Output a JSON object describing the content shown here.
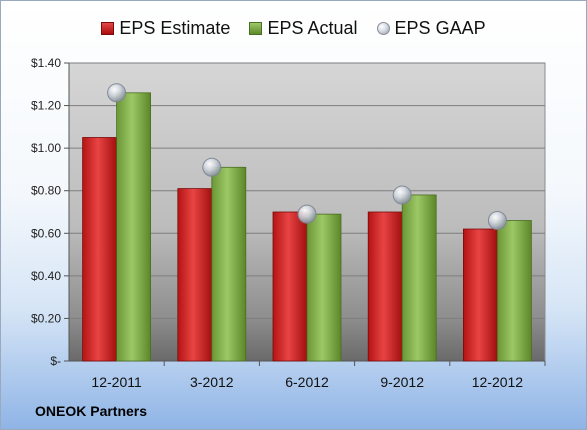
{
  "chart_data": {
    "type": "bar",
    "categories": [
      "12-2011",
      "3-2012",
      "6-2012",
      "9-2012",
      "12-2012"
    ],
    "series": [
      {
        "name": "EPS Estimate",
        "kind": "bar",
        "color": "#c41c1c",
        "values": [
          1.05,
          0.81,
          0.7,
          0.7,
          0.62
        ]
      },
      {
        "name": "EPS Actual",
        "kind": "bar",
        "color": "#7aa843",
        "values": [
          1.26,
          0.91,
          0.69,
          0.78,
          0.66
        ]
      },
      {
        "name": "EPS GAAP",
        "kind": "marker",
        "color": "#b8bec8",
        "values": [
          1.26,
          0.91,
          0.69,
          0.78,
          0.66
        ]
      }
    ],
    "ylim": [
      0,
      1.4
    ],
    "yticks": [
      0,
      0.2,
      0.4,
      0.6,
      0.8,
      1.0,
      1.2,
      1.4
    ],
    "ytick_labels": [
      "$-",
      "$0.20",
      "$0.40",
      "$0.60",
      "$0.80",
      "$1.00",
      "$1.20",
      "$1.40"
    ],
    "grid": true,
    "legend_position": "top"
  },
  "legend": {
    "estimate": "EPS Estimate",
    "actual": "EPS Actual",
    "gaap": "EPS GAAP"
  },
  "company": "ONEOK Partners"
}
